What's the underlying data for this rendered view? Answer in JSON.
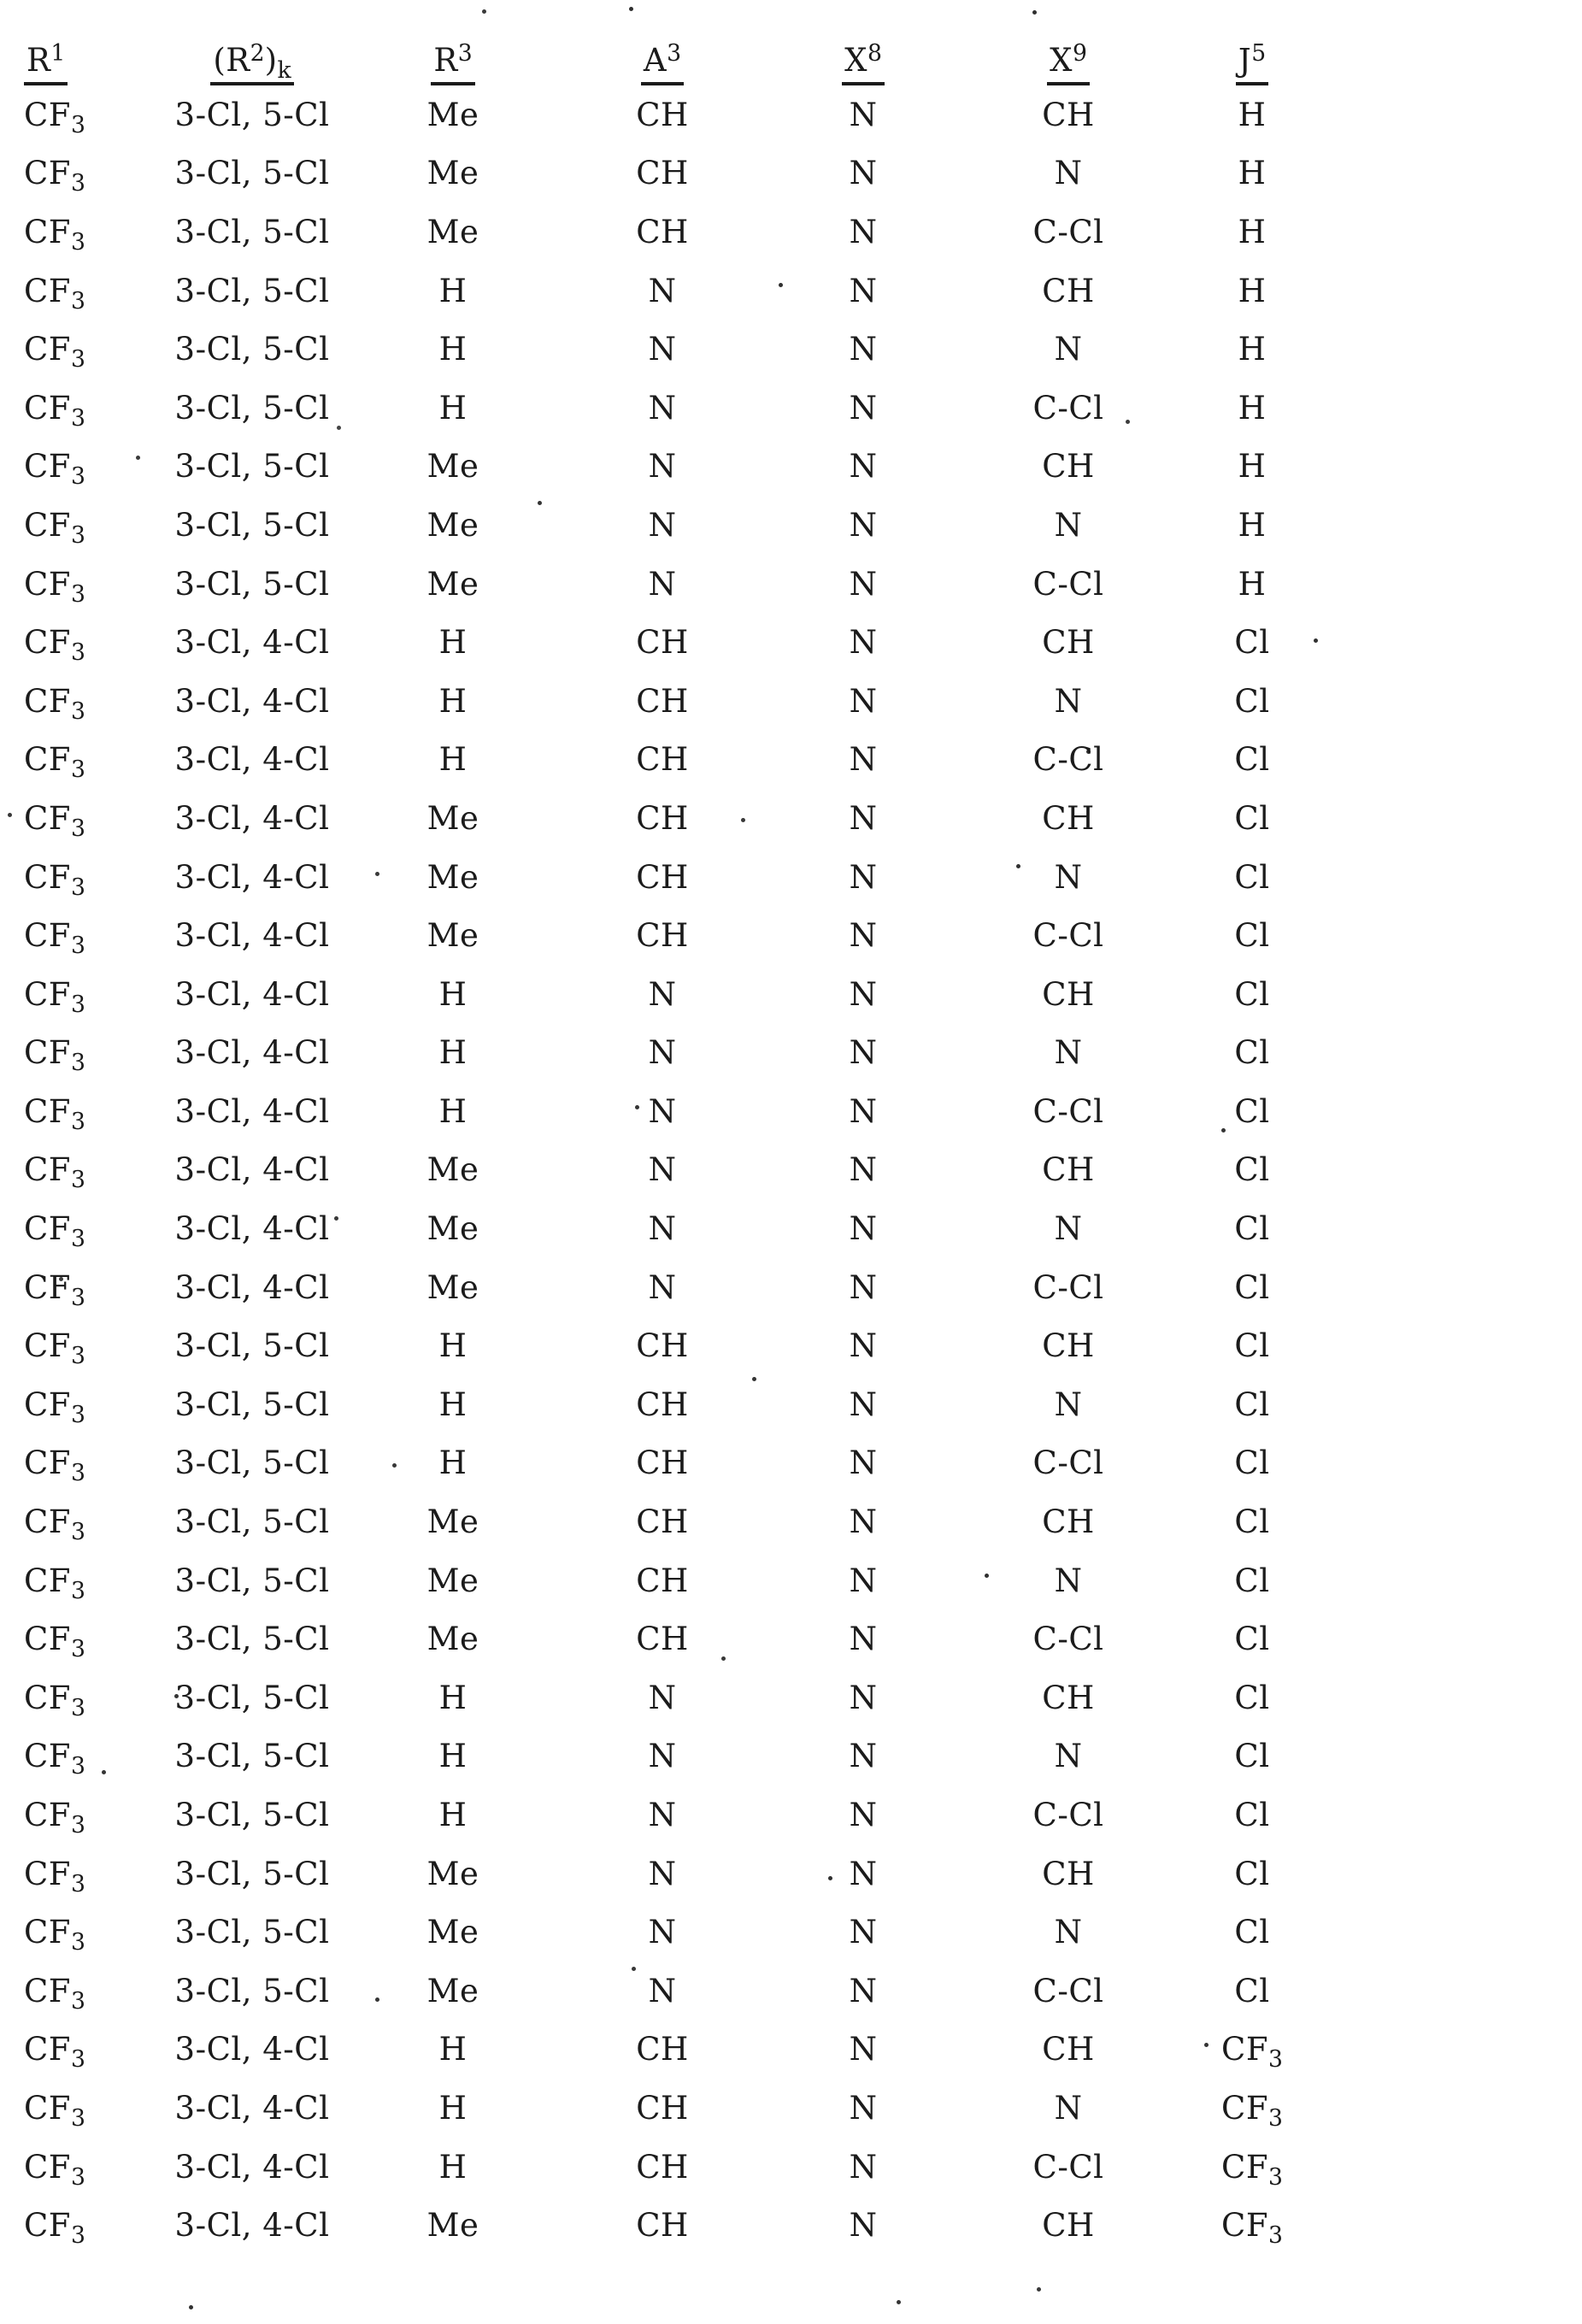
{
  "page": {
    "kind": "scanned substituent table",
    "ink_color": "#1b1b1b",
    "background_color": "#ffffff"
  },
  "table": {
    "columns": [
      {
        "id": "r1",
        "label": "R1",
        "parts": [
          {
            "t": "R"
          },
          {
            "t": "1",
            "s": "sup"
          }
        ]
      },
      {
        "id": "r2k",
        "label": "(R2)k",
        "parts": [
          {
            "t": "(R"
          },
          {
            "t": "2",
            "s": "sup"
          },
          {
            "t": ")"
          },
          {
            "t": "k",
            "s": "sub"
          }
        ]
      },
      {
        "id": "r3",
        "label": "R3",
        "parts": [
          {
            "t": "R"
          },
          {
            "t": "3",
            "s": "sup"
          }
        ]
      },
      {
        "id": "a3",
        "label": "A3",
        "parts": [
          {
            "t": "A"
          },
          {
            "t": "3",
            "s": "sup"
          }
        ]
      },
      {
        "id": "x8",
        "label": "X8",
        "parts": [
          {
            "t": "X"
          },
          {
            "t": "8",
            "s": "sup"
          }
        ]
      },
      {
        "id": "x9",
        "label": "X9",
        "parts": [
          {
            "t": "X"
          },
          {
            "t": "9",
            "s": "sup"
          }
        ]
      },
      {
        "id": "j5",
        "label": "J5",
        "parts": [
          {
            "t": "J"
          },
          {
            "t": "5",
            "s": "sup"
          }
        ]
      }
    ],
    "rows": [
      [
        "CF3",
        "3-Cl, 5-Cl",
        "Me",
        "CH",
        "N",
        "CH",
        "H"
      ],
      [
        "CF3",
        "3-Cl, 5-Cl",
        "Me",
        "CH",
        "N",
        "N",
        "H"
      ],
      [
        "CF3",
        "3-Cl, 5-Cl",
        "Me",
        "CH",
        "N",
        "C-Cl",
        "H"
      ],
      [
        "CF3",
        "3-Cl, 5-Cl",
        "H",
        "N",
        "N",
        "CH",
        "H"
      ],
      [
        "CF3",
        "3-Cl, 5-Cl",
        "H",
        "N",
        "N",
        "N",
        "H"
      ],
      [
        "CF3",
        "3-Cl, 5-Cl",
        "H",
        "N",
        "N",
        "C-Cl",
        "H"
      ],
      [
        "CF3",
        "3-Cl, 5-Cl",
        "Me",
        "N",
        "N",
        "CH",
        "H"
      ],
      [
        "CF3",
        "3-Cl, 5-Cl",
        "Me",
        "N",
        "N",
        "N",
        "H"
      ],
      [
        "CF3",
        "3-Cl, 5-Cl",
        "Me",
        "N",
        "N",
        "C-Cl",
        "H"
      ],
      [
        "CF3",
        "3-Cl, 4-Cl",
        "H",
        "CH",
        "N",
        "CH",
        "Cl"
      ],
      [
        "CF3",
        "3-Cl, 4-Cl",
        "H",
        "CH",
        "N",
        "N",
        "Cl"
      ],
      [
        "CF3",
        "3-Cl, 4-Cl",
        "H",
        "CH",
        "N",
        "C-Cl",
        "Cl"
      ],
      [
        "CF3",
        "3-Cl, 4-Cl",
        "Me",
        "CH",
        "N",
        "CH",
        "Cl"
      ],
      [
        "CF3",
        "3-Cl, 4-Cl",
        "Me",
        "CH",
        "N",
        "N",
        "Cl"
      ],
      [
        "CF3",
        "3-Cl, 4-Cl",
        "Me",
        "CH",
        "N",
        "C-Cl",
        "Cl"
      ],
      [
        "CF3",
        "3-Cl, 4-Cl",
        "H",
        "N",
        "N",
        "CH",
        "Cl"
      ],
      [
        "CF3",
        "3-Cl, 4-Cl",
        "H",
        "N",
        "N",
        "N",
        "Cl"
      ],
      [
        "CF3",
        "3-Cl, 4-Cl",
        "H",
        "N",
        "N",
        "C-Cl",
        "Cl"
      ],
      [
        "CF3",
        "3-Cl, 4-Cl",
        "Me",
        "N",
        "N",
        "CH",
        "Cl"
      ],
      [
        "CF3",
        "3-Cl, 4-Cl",
        "Me",
        "N",
        "N",
        "N",
        "Cl"
      ],
      [
        "CF3",
        "3-Cl, 4-Cl",
        "Me",
        "N",
        "N",
        "C-Cl",
        "Cl"
      ],
      [
        "CF3",
        "3-Cl, 5-Cl",
        "H",
        "CH",
        "N",
        "CH",
        "Cl"
      ],
      [
        "CF3",
        "3-Cl, 5-Cl",
        "H",
        "CH",
        "N",
        "N",
        "Cl"
      ],
      [
        "CF3",
        "3-Cl, 5-Cl",
        "H",
        "CH",
        "N",
        "C-Cl",
        "Cl"
      ],
      [
        "CF3",
        "3-Cl, 5-Cl",
        "Me",
        "CH",
        "N",
        "CH",
        "Cl"
      ],
      [
        "CF3",
        "3-Cl, 5-Cl",
        "Me",
        "CH",
        "N",
        "N",
        "Cl"
      ],
      [
        "CF3",
        "3-Cl, 5-Cl",
        "Me",
        "CH",
        "N",
        "C-Cl",
        "Cl"
      ],
      [
        "CF3",
        "3-Cl, 5-Cl",
        "H",
        "N",
        "N",
        "CH",
        "Cl"
      ],
      [
        "CF3",
        "3-Cl, 5-Cl",
        "H",
        "N",
        "N",
        "N",
        "Cl"
      ],
      [
        "CF3",
        "3-Cl, 5-Cl",
        "H",
        "N",
        "N",
        "C-Cl",
        "Cl"
      ],
      [
        "CF3",
        "3-Cl, 5-Cl",
        "Me",
        "N",
        "N",
        "CH",
        "Cl"
      ],
      [
        "CF3",
        "3-Cl, 5-Cl",
        "Me",
        "N",
        "N",
        "N",
        "Cl"
      ],
      [
        "CF3",
        "3-Cl, 5-Cl",
        "Me",
        "N",
        "N",
        "C-Cl",
        "Cl"
      ],
      [
        "CF3",
        "3-Cl, 4-Cl",
        "H",
        "CH",
        "N",
        "CH",
        "CF3"
      ],
      [
        "CF3",
        "3-Cl, 4-Cl",
        "H",
        "CH",
        "N",
        "N",
        "CF3"
      ],
      [
        "CF3",
        "3-Cl, 4-Cl",
        "H",
        "CH",
        "N",
        "C-Cl",
        "CF3"
      ],
      [
        "CF3",
        "3-Cl, 4-Cl",
        "Me",
        "CH",
        "N",
        "CH",
        "CF3"
      ]
    ]
  }
}
